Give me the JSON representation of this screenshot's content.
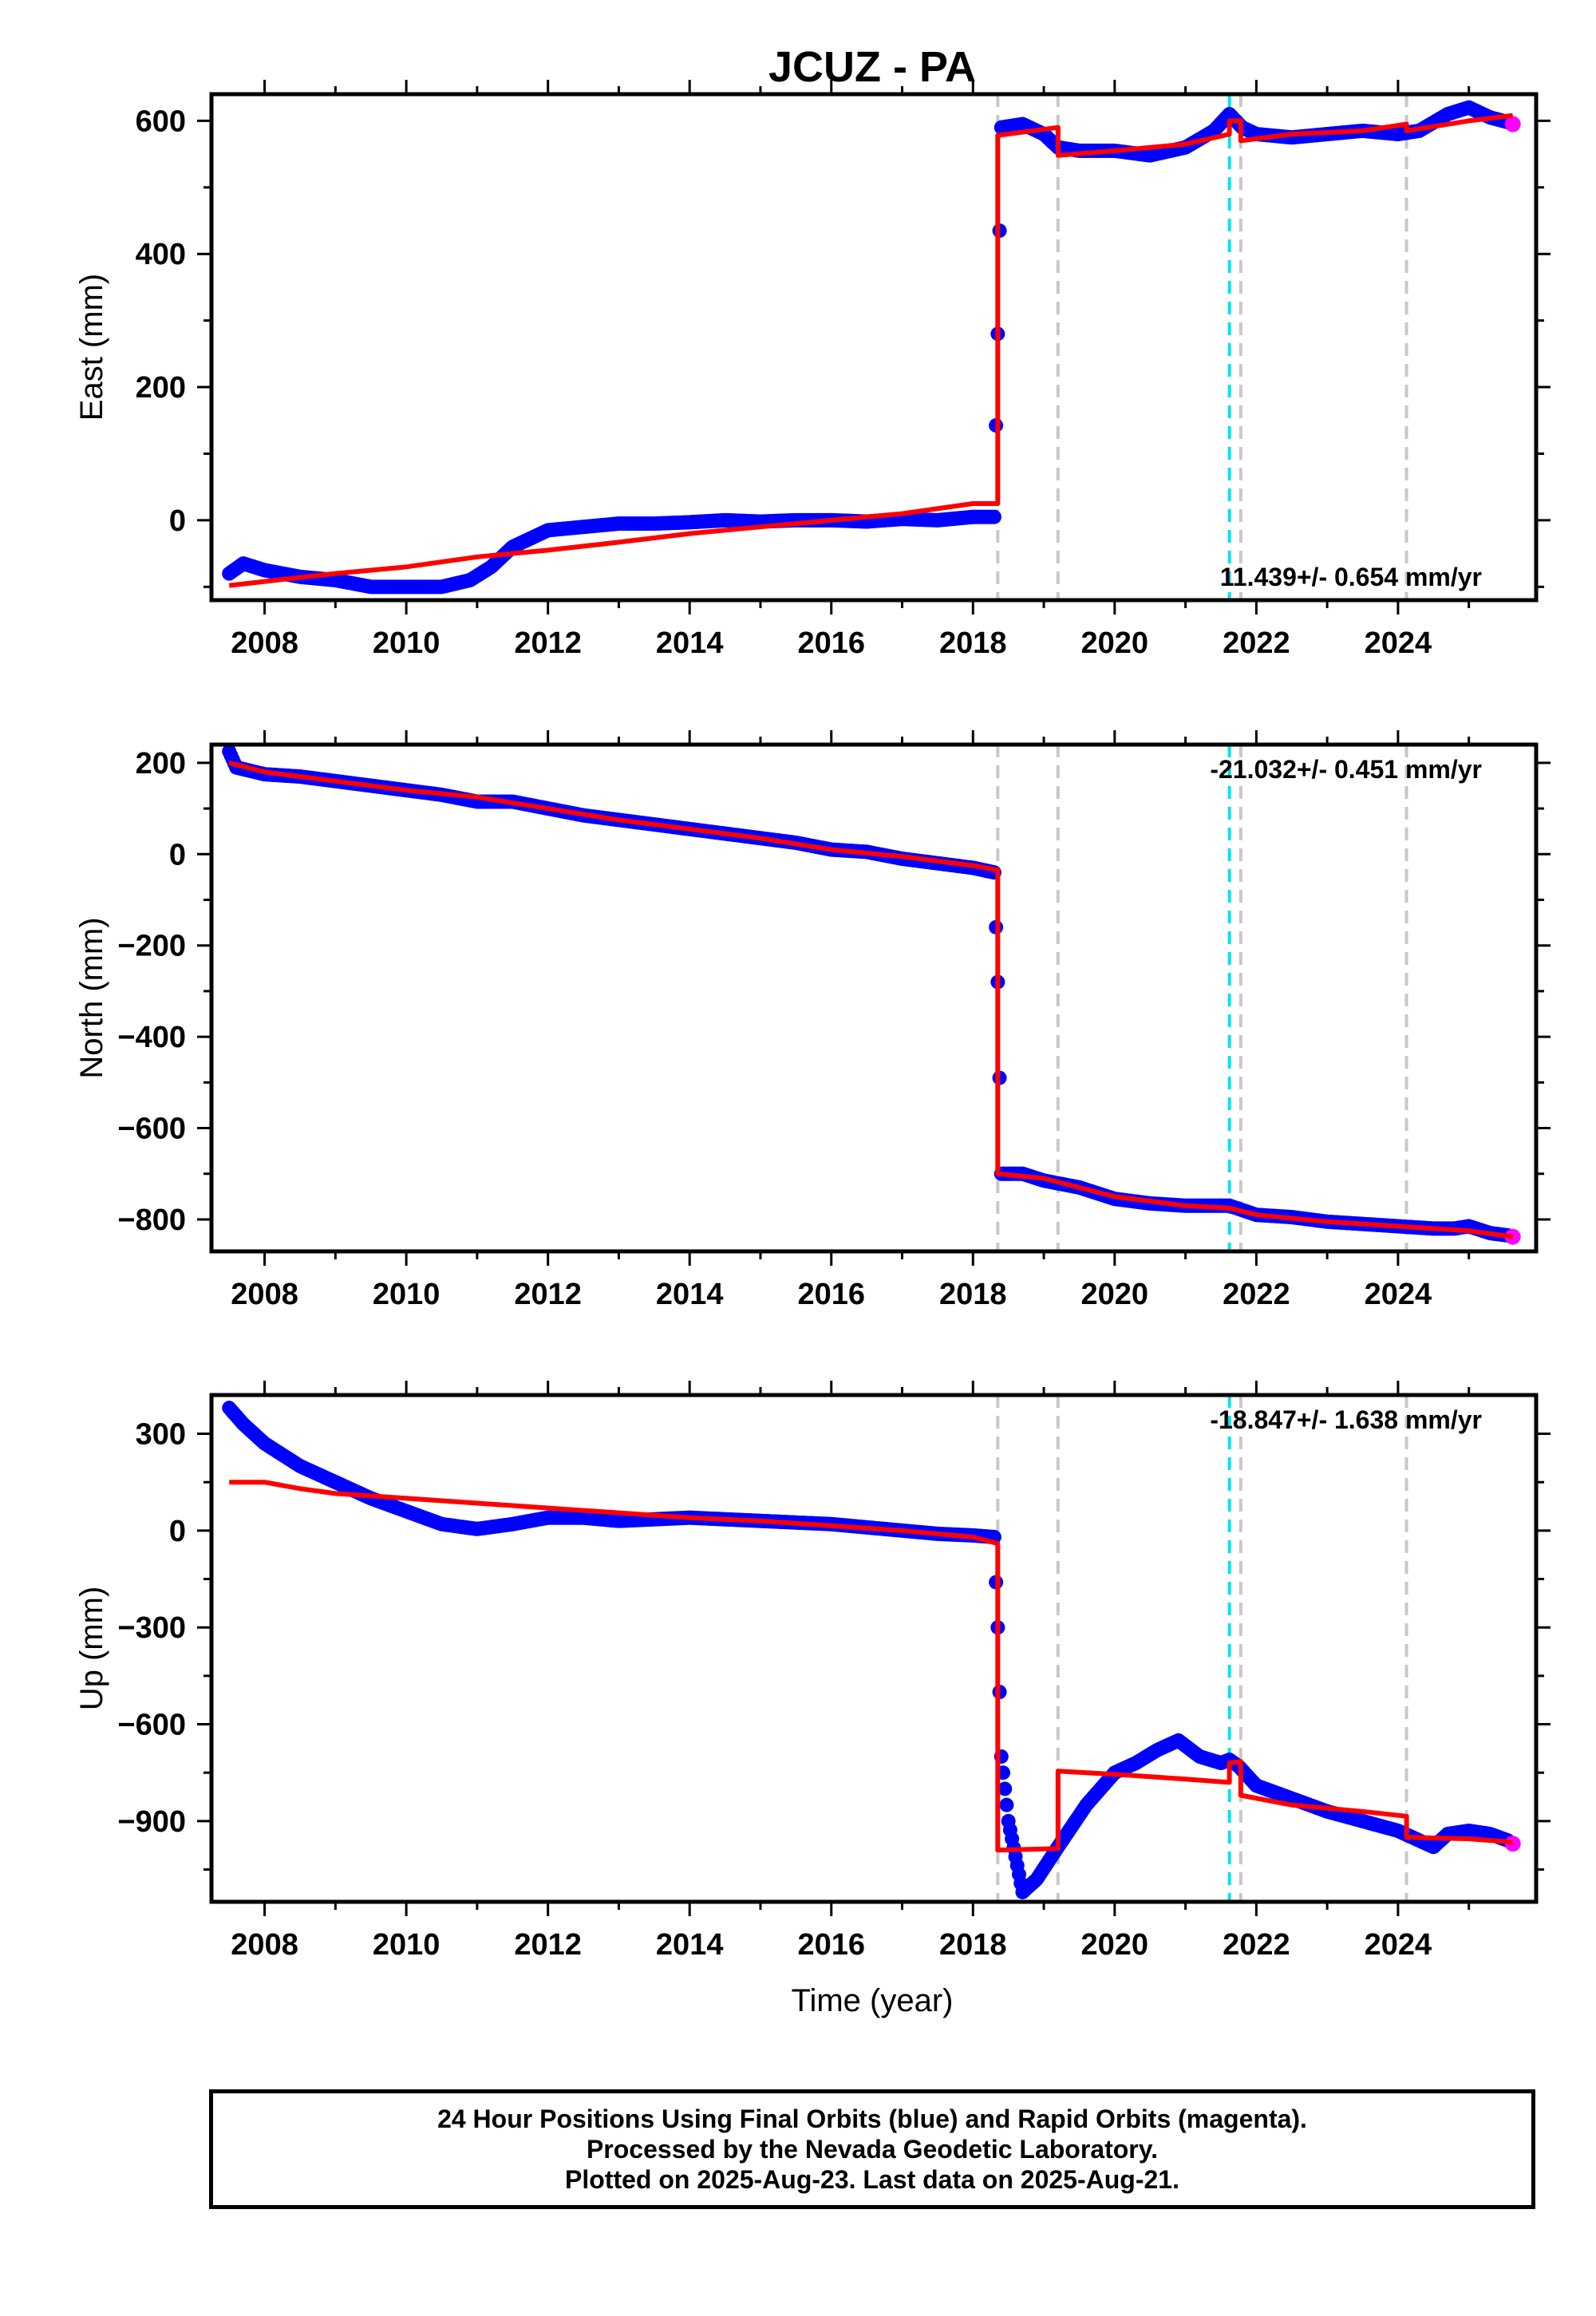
{
  "chart_data": {
    "type": "scatter",
    "title": "JCUZ - PA",
    "xlabel": "Time (year)",
    "x_ticks": [
      2008,
      2010,
      2012,
      2014,
      2016,
      2018,
      2020,
      2022,
      2024
    ],
    "xlim": [
      2007.25,
      2025.95
    ],
    "vertical_lines": [
      {
        "x": 2018.35,
        "color": "#c8c8c8",
        "style": "dashed"
      },
      {
        "x": 2019.2,
        "color": "#c8c8c8",
        "style": "dashed"
      },
      {
        "x": 2021.62,
        "color": "#00e5ee",
        "style": "dashed"
      },
      {
        "x": 2021.78,
        "color": "#c8c8c8",
        "style": "dashed"
      },
      {
        "x": 2024.12,
        "color": "#c8c8c8",
        "style": "dashed"
      }
    ],
    "colors": {
      "final_orbits": "#0000ff",
      "rapid_orbits": "#ff00ff",
      "model_fit": "#ff0000"
    },
    "panels": [
      {
        "ylabel": "East (mm)",
        "ylim": [
          -120,
          640
        ],
        "y_ticks": [
          0,
          200,
          400,
          600
        ],
        "rate_text": "11.439+/- 0.654 mm/yr",
        "rate_position": "bottom-right",
        "series": [
          {
            "kind": "final",
            "x": [
              2007.5,
              2007.7,
              2008.0,
              2008.5,
              2009.0,
              2009.5,
              2010.0,
              2010.5,
              2010.9,
              2011.2,
              2011.5,
              2012.0,
              2012.5,
              2013.0,
              2013.5,
              2014.0,
              2014.5,
              2015.0,
              2015.5,
              2016.0,
              2016.5,
              2017.0,
              2017.5,
              2018.0,
              2018.3,
              2018.35,
              2018.4,
              2018.7,
              2019.0,
              2019.2,
              2019.5,
              2020.0,
              2020.5,
              2021.0,
              2021.4,
              2021.62,
              2021.8,
              2022.0,
              2022.5,
              2023.0,
              2023.5,
              2024.0,
              2024.3,
              2024.7,
              2025.0,
              2025.3,
              2025.55
            ],
            "y": [
              -80,
              -65,
              -75,
              -85,
              -90,
              -100,
              -100,
              -100,
              -90,
              -70,
              -40,
              -15,
              -10,
              -5,
              -5,
              -3,
              0,
              -2,
              0,
              0,
              -2,
              2,
              0,
              5,
              5,
              280,
              590,
              595,
              580,
              560,
              555,
              555,
              548,
              560,
              585,
              610,
              590,
              580,
              575,
              580,
              585,
              580,
              585,
              610,
              620,
              605,
              598
            ]
          },
          {
            "kind": "rapid",
            "x": [
              2025.62
            ],
            "y": [
              595
            ]
          },
          {
            "kind": "model",
            "x": [
              2007.5,
              2008.0,
              2009.0,
              2010.0,
              2011.0,
              2012.0,
              2013.0,
              2014.0,
              2015.0,
              2016.0,
              2017.0,
              2018.0,
              2018.35,
              2018.35,
              2019.2,
              2019.2,
              2020.0,
              2021.0,
              2021.62,
              2021.62,
              2021.78,
              2021.78,
              2022.5,
              2023.5,
              2024.12,
              2024.12,
              2025.0,
              2025.62
            ],
            "y": [
              -98,
              -92,
              -80,
              -70,
              -55,
              -45,
              -33,
              -20,
              -10,
              0,
              10,
              25,
              25,
              578,
              590,
              548,
              555,
              565,
              580,
              600,
              600,
              570,
              580,
              585,
              595,
              585,
              600,
              608
            ]
          }
        ]
      },
      {
        "ylabel": "North (mm)",
        "ylim": [
          -870,
          240
        ],
        "y_ticks": [
          -800,
          -600,
          -400,
          -200,
          0,
          200
        ],
        "rate_text": "-21.032+/- 0.451 mm/yr",
        "rate_position": "top-right",
        "series": [
          {
            "kind": "final",
            "x": [
              2007.5,
              2007.6,
              2008.0,
              2008.5,
              2009.0,
              2009.5,
              2010.0,
              2010.5,
              2011.0,
              2011.5,
              2012.0,
              2012.5,
              2013.0,
              2013.5,
              2014.0,
              2014.5,
              2015.0,
              2015.5,
              2016.0,
              2016.5,
              2017.0,
              2017.5,
              2018.0,
              2018.3,
              2018.35,
              2018.4,
              2018.7,
              2019.0,
              2019.5,
              2020.0,
              2020.5,
              2021.0,
              2021.62,
              2022.0,
              2022.5,
              2023.0,
              2023.5,
              2024.0,
              2024.5,
              2024.8,
              2025.0,
              2025.3,
              2025.55
            ],
            "y": [
              225,
              190,
              175,
              170,
              160,
              150,
              140,
              130,
              115,
              115,
              100,
              85,
              75,
              65,
              55,
              45,
              35,
              25,
              10,
              5,
              -10,
              -20,
              -30,
              -40,
              -280,
              -700,
              -700,
              -715,
              -730,
              -755,
              -765,
              -770,
              -770,
              -790,
              -795,
              -805,
              -810,
              -815,
              -820,
              -820,
              -815,
              -830,
              -835
            ]
          },
          {
            "kind": "rapid",
            "x": [
              2025.62
            ],
            "y": [
              -838
            ]
          },
          {
            "kind": "model",
            "x": [
              2007.5,
              2008.0,
              2009.0,
              2010.0,
              2011.0,
              2012.0,
              2013.0,
              2014.0,
              2015.0,
              2016.0,
              2017.0,
              2018.0,
              2018.35,
              2018.35,
              2019.0,
              2020.0,
              2021.0,
              2021.62,
              2022.0,
              2023.0,
              2024.0,
              2025.0,
              2025.62
            ],
            "y": [
              200,
              180,
              160,
              140,
              125,
              100,
              75,
              55,
              35,
              10,
              -5,
              -25,
              -35,
              -700,
              -710,
              -750,
              -770,
              -775,
              -790,
              -805,
              -815,
              -825,
              -838
            ]
          }
        ]
      },
      {
        "ylabel": "Up (mm)",
        "ylim": [
          -1150,
          420
        ],
        "y_ticks": [
          -900,
          -600,
          -300,
          0,
          300
        ],
        "rate_text": "-18.847+/- 1.638 mm/yr",
        "rate_position": "top-right",
        "series": [
          {
            "kind": "final",
            "x": [
              2007.5,
              2007.7,
              2008.0,
              2008.5,
              2009.0,
              2009.5,
              2010.0,
              2010.5,
              2011.0,
              2011.5,
              2012.0,
              2012.5,
              2013.0,
              2013.5,
              2014.0,
              2014.5,
              2015.0,
              2015.5,
              2016.0,
              2016.5,
              2017.0,
              2017.5,
              2018.0,
              2018.3,
              2018.35,
              2018.4,
              2018.5,
              2018.7,
              2018.9,
              2019.2,
              2019.6,
              2020.0,
              2020.3,
              2020.6,
              2020.9,
              2021.2,
              2021.5,
              2021.62,
              2021.75,
              2022.0,
              2022.5,
              2023.0,
              2023.5,
              2024.0,
              2024.3,
              2024.5,
              2024.7,
              2025.0,
              2025.3,
              2025.55
            ],
            "y": [
              380,
              330,
              270,
              200,
              150,
              100,
              60,
              20,
              5,
              20,
              40,
              40,
              30,
              35,
              40,
              35,
              30,
              25,
              20,
              10,
              0,
              -10,
              -15,
              -20,
              -300,
              -700,
              -900,
              -1120,
              -1080,
              -980,
              -850,
              -750,
              -720,
              -680,
              -650,
              -700,
              -720,
              -710,
              -730,
              -790,
              -830,
              -870,
              -900,
              -930,
              -960,
              -980,
              -940,
              -930,
              -940,
              -960
            ]
          },
          {
            "kind": "rapid",
            "x": [
              2025.62
            ],
            "y": [
              -970
            ]
          },
          {
            "kind": "model",
            "x": [
              2007.5,
              2008.0,
              2008.5,
              2009.0,
              2010.0,
              2011.0,
              2012.0,
              2013.0,
              2014.0,
              2015.0,
              2016.0,
              2017.0,
              2018.0,
              2018.35,
              2018.35,
              2019.2,
              2019.2,
              2020.0,
              2021.0,
              2021.62,
              2021.62,
              2021.78,
              2021.78,
              2022.5,
              2023.5,
              2024.12,
              2024.12,
              2025.0,
              2025.62
            ],
            "y": [
              150,
              150,
              130,
              115,
              100,
              85,
              70,
              55,
              40,
              30,
              15,
              0,
              -20,
              -40,
              -990,
              -985,
              -745,
              -755,
              -770,
              -780,
              -720,
              -715,
              -820,
              -850,
              -870,
              -885,
              -950,
              -955,
              -965
            ]
          }
        ]
      }
    ]
  },
  "caption": {
    "line1": "24 Hour Positions Using Final Orbits (blue) and Rapid Orbits (magenta).",
    "line2": "Processed by the Nevada Geodetic Laboratory.",
    "line3": "Plotted on 2025-Aug-23. Last data on 2025-Aug-21."
  }
}
